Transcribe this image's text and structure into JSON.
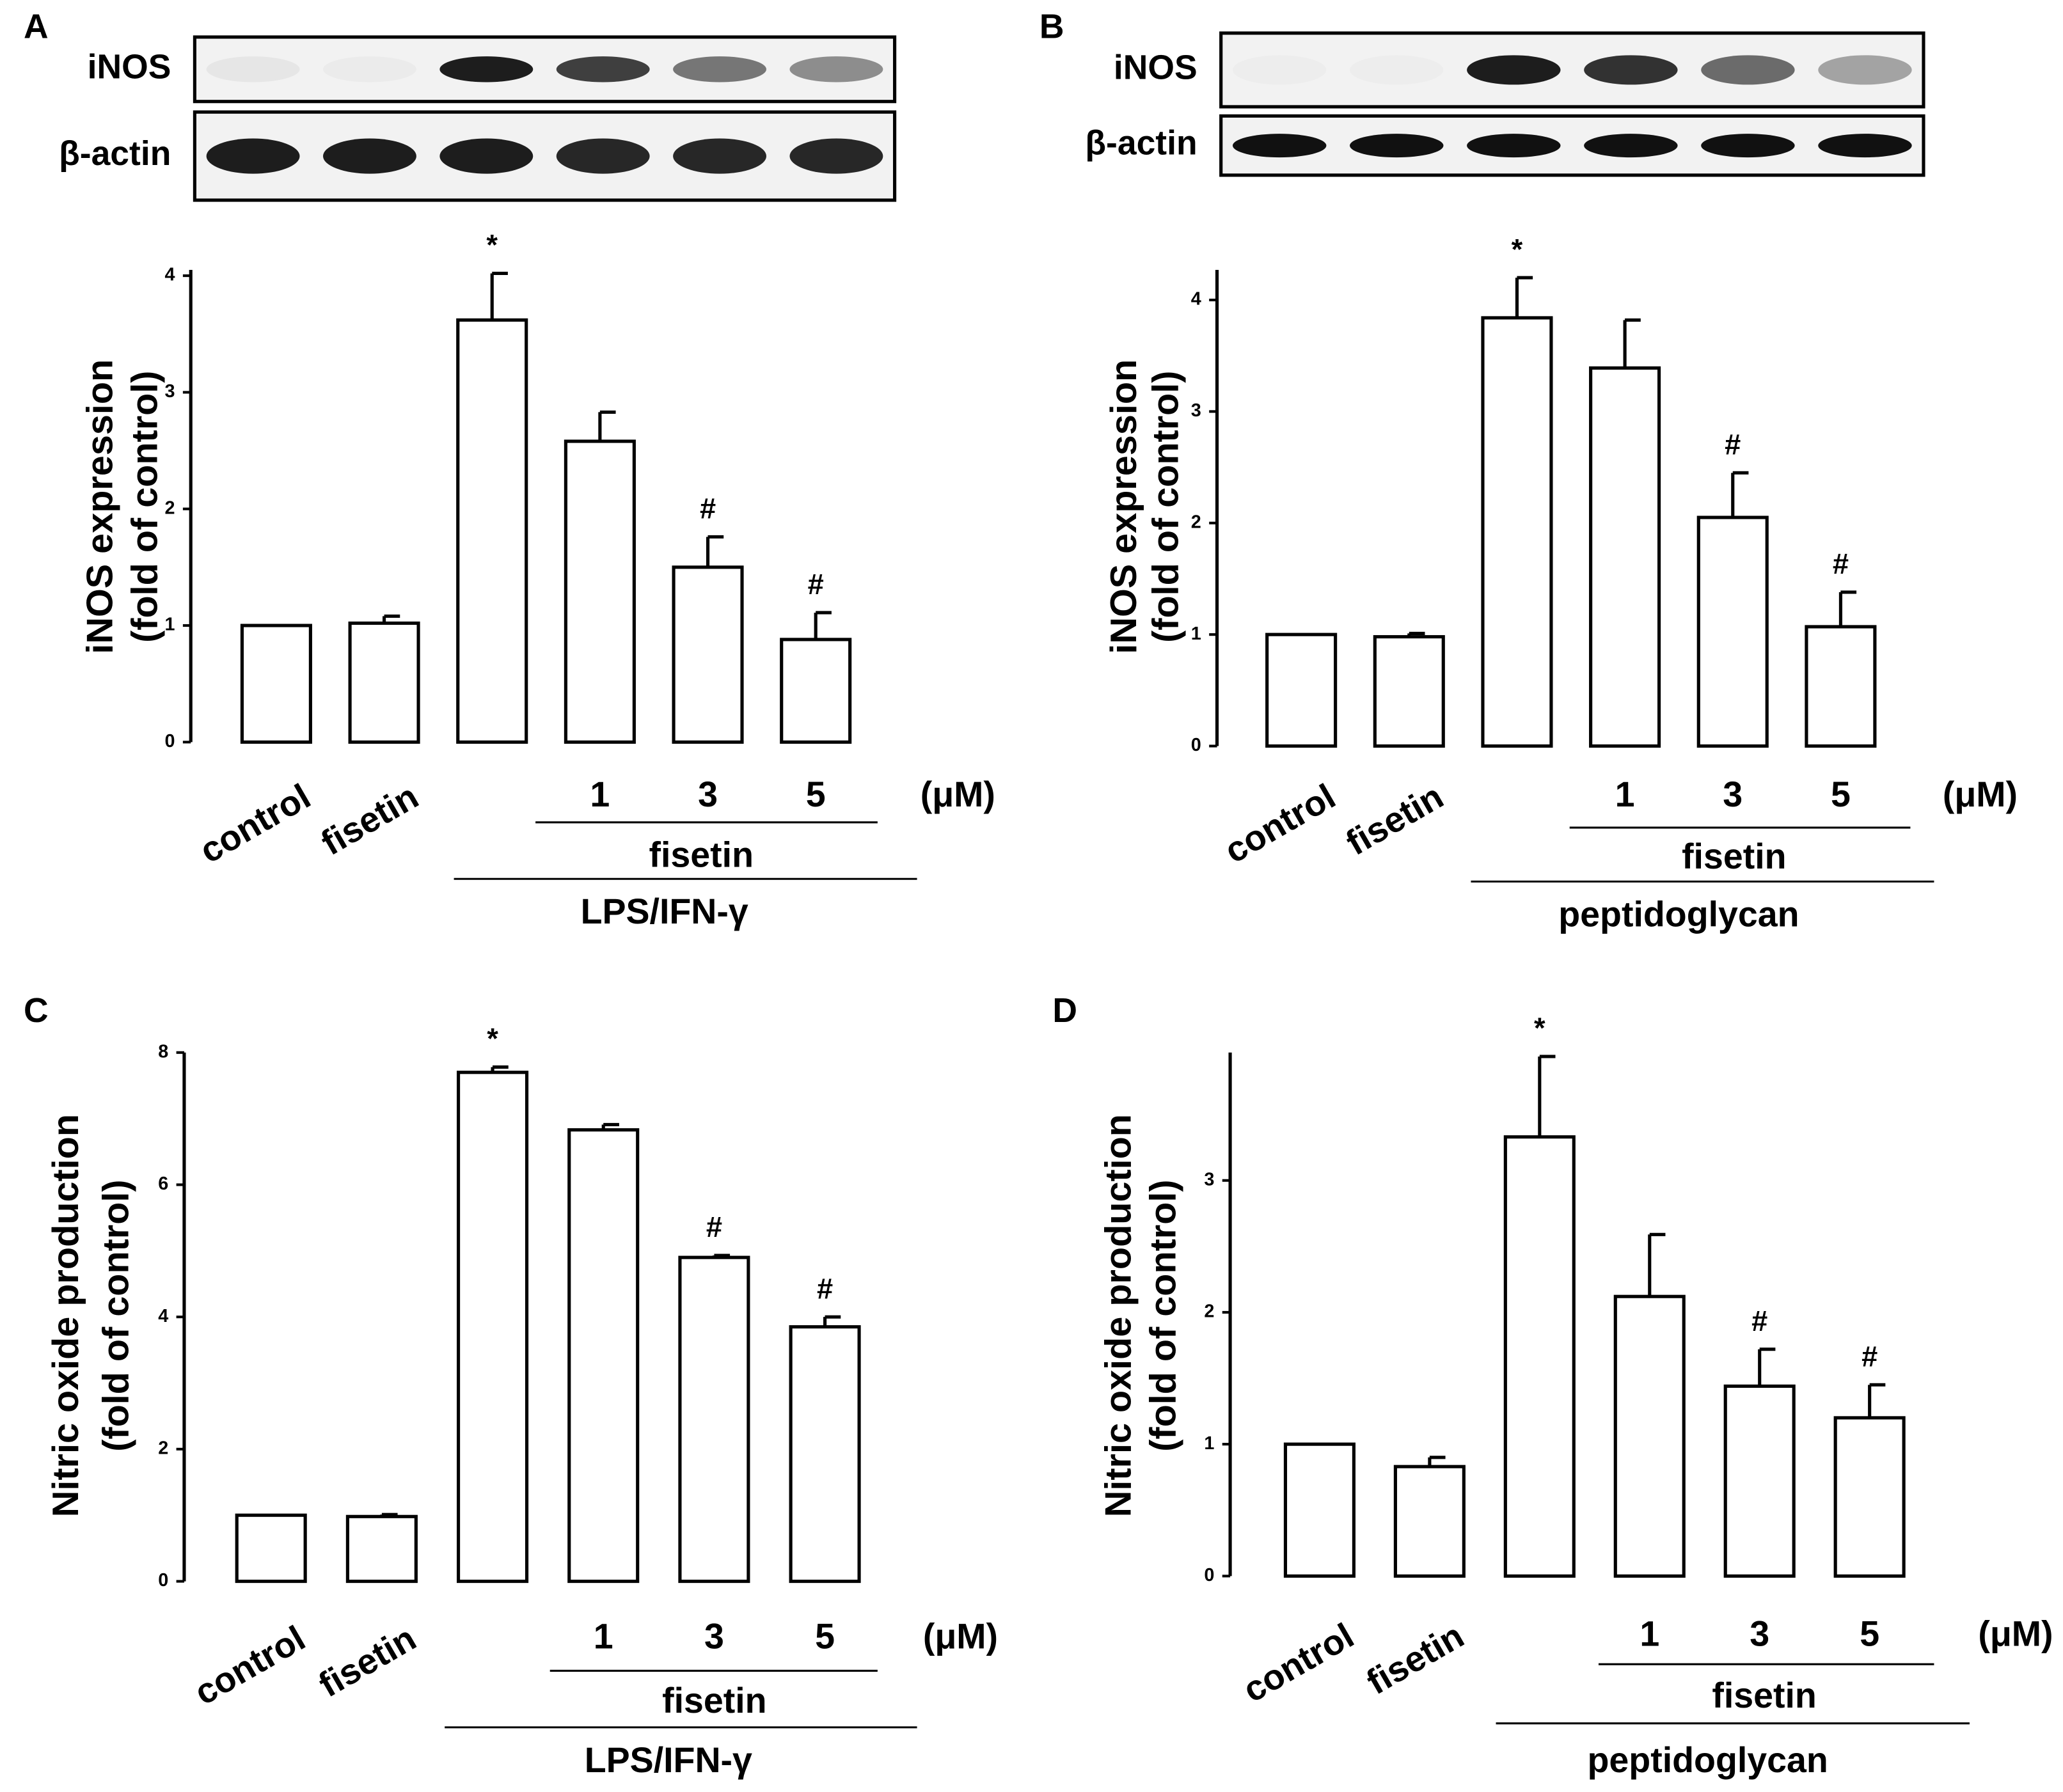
{
  "chart_data": [
    {
      "type": "bar",
      "panel": "A",
      "blot_labels": [
        "iNOS",
        "β-actin"
      ],
      "y_label": [
        "iNOS expression",
        "(fold of control)"
      ],
      "categories": [
        "control",
        "fisetin",
        null,
        "1",
        "3",
        "5"
      ],
      "unit": "(μM)",
      "group_labels": [
        "fisetin",
        "LPS/IFN-γ"
      ],
      "values": [
        1.0,
        1.02,
        3.62,
        2.58,
        1.5,
        0.88
      ],
      "errors": [
        0,
        0.06,
        0.4,
        0.25,
        0.26,
        0.23
      ],
      "annotations": [
        null,
        null,
        "*",
        null,
        "#",
        "#"
      ],
      "ylim": [
        0,
        4.05
      ],
      "yticks": [
        0,
        1,
        2,
        3,
        4
      ],
      "color": "#ffffff"
    },
    {
      "type": "bar",
      "panel": "B",
      "blot_labels": [
        "iNOS",
        "β-actin"
      ],
      "y_label": [
        "iNOS expression",
        "(fold of control)"
      ],
      "categories": [
        "control",
        "fisetin",
        null,
        "1",
        "3",
        "5"
      ],
      "unit": "(μM)",
      "group_labels": [
        "fisetin",
        "peptidoglycan"
      ],
      "values": [
        1.0,
        0.98,
        3.84,
        3.39,
        2.05,
        1.07
      ],
      "errors": [
        0,
        0.03,
        0.36,
        0.43,
        0.4,
        0.31
      ],
      "annotations": [
        null,
        null,
        "*",
        null,
        "#",
        "#"
      ],
      "ylim": [
        0,
        4.27
      ],
      "yticks": [
        0,
        1,
        2,
        3,
        4
      ],
      "color": "#ffffff"
    },
    {
      "type": "bar",
      "panel": "C",
      "y_label": [
        "Nitric oxide production",
        "(fold of control)"
      ],
      "categories": [
        "control",
        "fisetin",
        null,
        "1",
        "3",
        "5"
      ],
      "unit": "(μM)",
      "group_labels": [
        "fisetin",
        "LPS/IFN-γ"
      ],
      "values": [
        1.0,
        0.98,
        7.7,
        6.83,
        4.9,
        3.85
      ],
      "errors": [
        0,
        0.03,
        0.08,
        0.08,
        0.03,
        0.15
      ],
      "annotations": [
        null,
        null,
        "*",
        null,
        "#",
        "#"
      ],
      "ylim": [
        0,
        8
      ],
      "yticks": [
        0,
        2,
        4,
        6,
        8
      ],
      "color": "#ffffff"
    },
    {
      "type": "bar",
      "panel": "D",
      "y_label": [
        "Nitric oxide production",
        "(fold of control)"
      ],
      "categories": [
        "control",
        "fisetin",
        null,
        "1",
        "3",
        "5"
      ],
      "unit": "(μM)",
      "group_labels": [
        "fisetin",
        "peptidoglycan"
      ],
      "values": [
        1.0,
        0.83,
        3.33,
        2.12,
        1.44,
        1.2
      ],
      "errors": [
        0,
        0.07,
        0.61,
        0.47,
        0.28,
        0.25
      ],
      "annotations": [
        null,
        null,
        "*",
        null,
        "#",
        "#"
      ],
      "ylim": [
        0,
        3.97
      ],
      "yticks": [
        0,
        1,
        2,
        3
      ],
      "color": "#ffffff"
    }
  ]
}
